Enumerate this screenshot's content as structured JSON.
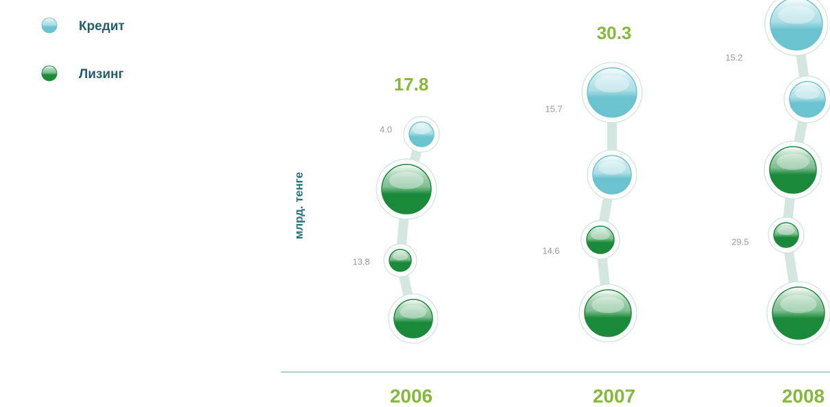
{
  "chart_data": {
    "type": "bubble-stack",
    "y_label": "млрд. тенге",
    "categories": [
      "2006",
      "2007",
      "2008"
    ],
    "totals": [
      17.8,
      30.3,
      null
    ],
    "series": [
      {
        "name": "Кредит",
        "color": "#6cc3d0",
        "values": [
          4.0,
          15.7,
          15.2
        ],
        "value_labels": [
          "4.0",
          "15.7",
          "15.2"
        ]
      },
      {
        "name": "Лизинг",
        "color": "#1a8a3a",
        "values": [
          13.8,
          14.6,
          29.5
        ]
      }
    ]
  }
}
